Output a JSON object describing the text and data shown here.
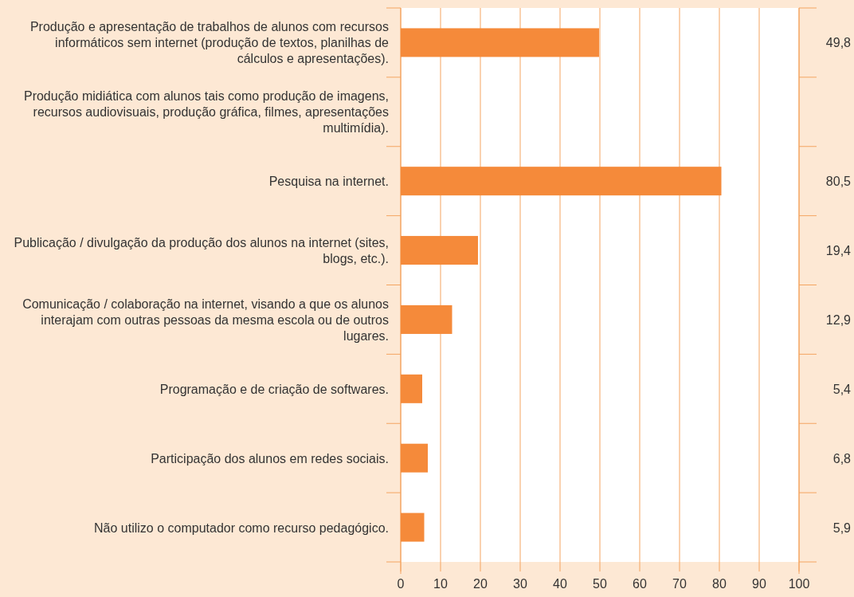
{
  "chart_data": {
    "type": "bar",
    "orientation": "horizontal",
    "categories": [
      "Produção e apresentação de trabalhos de alunos com recursos informáticos sem internet (produção de textos, planilhas de cálculos e apresentações).",
      "Produção midiática com alunos tais como produção de imagens, recursos audiovisuais, produção gráfica, filmes, apresentações multimídia).",
      "Pesquisa na internet.",
      "Publicação / divulgação da produção dos alunos na internet (sites, blogs, etc.).",
      "Comunicação / colaboração na internet, visando a que os alunos interajam com outras pessoas da mesma escola ou de outros lugares.",
      "Programação e de criação de softwares.",
      "Participação dos alunos em redes sociais.",
      "Não utilizo o computador como recurso pedagógico."
    ],
    "values": [
      49.8,
      null,
      80.5,
      19.4,
      12.9,
      5.4,
      6.8,
      5.9
    ],
    "value_labels": [
      "49,8",
      null,
      "80,5",
      "19,4",
      "12,9",
      "5,4",
      "6,8",
      "5,9"
    ],
    "color": "#f58a3a",
    "xlim": [
      0,
      100
    ],
    "xticks": [
      0,
      10,
      20,
      30,
      40,
      50,
      60,
      70,
      80,
      90,
      100
    ],
    "grid": "x"
  }
}
